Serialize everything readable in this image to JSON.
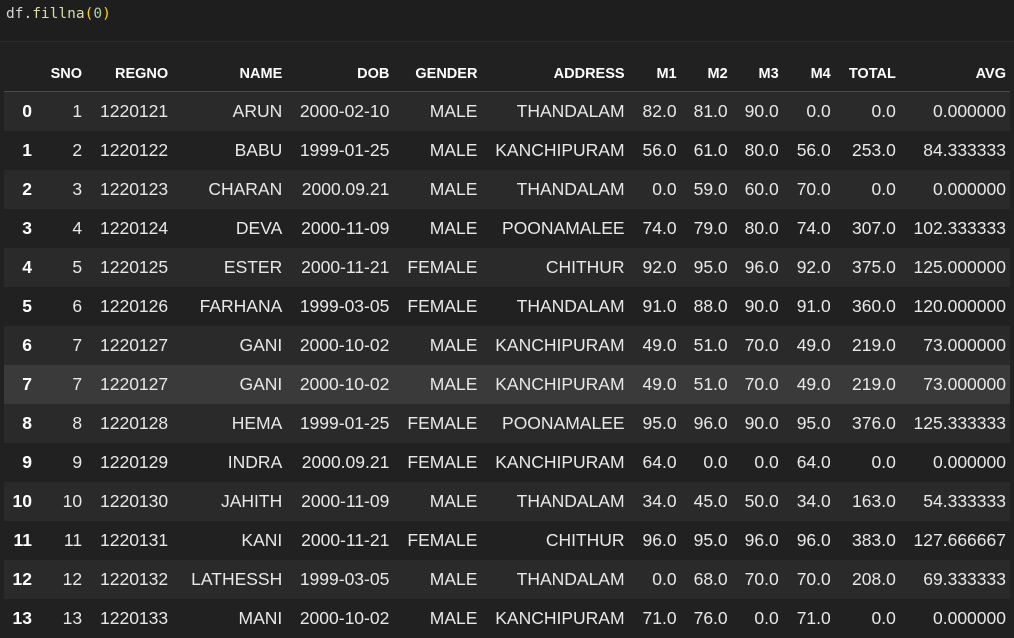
{
  "input": {
    "code_obj": "df.",
    "code_fn": "fillna",
    "code_open": "(",
    "code_arg": "0",
    "code_close": ")"
  },
  "table": {
    "columns": [
      "",
      "SNO",
      "REGNO",
      "NAME",
      "DOB",
      "GENDER",
      "ADDRESS",
      "M1",
      "M2",
      "M3",
      "M4",
      "TOTAL",
      "AVG"
    ],
    "rows": [
      [
        "0",
        "1",
        "1220121",
        "ARUN",
        "2000-02-10",
        "MALE",
        "THANDALAM",
        "82.0",
        "81.0",
        "90.0",
        "0.0",
        "0.0",
        "0.000000"
      ],
      [
        "1",
        "2",
        "1220122",
        "BABU",
        "1999-01-25",
        "MALE",
        "KANCHIPURAM",
        "56.0",
        "61.0",
        "80.0",
        "56.0",
        "253.0",
        "84.333333"
      ],
      [
        "2",
        "3",
        "1220123",
        "CHARAN",
        "2000.09.21",
        "MALE",
        "THANDALAM",
        "0.0",
        "59.0",
        "60.0",
        "70.0",
        "0.0",
        "0.000000"
      ],
      [
        "3",
        "4",
        "1220124",
        "DEVA",
        "2000-11-09",
        "MALE",
        "POONAMALEE",
        "74.0",
        "79.0",
        "80.0",
        "74.0",
        "307.0",
        "102.333333"
      ],
      [
        "4",
        "5",
        "1220125",
        "ESTER",
        "2000-11-21",
        "FEMALE",
        "CHITHUR",
        "92.0",
        "95.0",
        "96.0",
        "92.0",
        "375.0",
        "125.000000"
      ],
      [
        "5",
        "6",
        "1220126",
        "FARHANA",
        "1999-03-05",
        "FEMALE",
        "THANDALAM",
        "91.0",
        "88.0",
        "90.0",
        "91.0",
        "360.0",
        "120.000000"
      ],
      [
        "6",
        "7",
        "1220127",
        "GANI",
        "2000-10-02",
        "MALE",
        "KANCHIPURAM",
        "49.0",
        "51.0",
        "70.0",
        "49.0",
        "219.0",
        "73.000000"
      ],
      [
        "7",
        "7",
        "1220127",
        "GANI",
        "2000-10-02",
        "MALE",
        "KANCHIPURAM",
        "49.0",
        "51.0",
        "70.0",
        "49.0",
        "219.0",
        "73.000000"
      ],
      [
        "8",
        "8",
        "1220128",
        "HEMA",
        "1999-01-25",
        "FEMALE",
        "POONAMALEE",
        "95.0",
        "96.0",
        "90.0",
        "95.0",
        "376.0",
        "125.333333"
      ],
      [
        "9",
        "9",
        "1220129",
        "INDRA",
        "2000.09.21",
        "FEMALE",
        "KANCHIPURAM",
        "64.0",
        "0.0",
        "0.0",
        "64.0",
        "0.0",
        "0.000000"
      ],
      [
        "10",
        "10",
        "1220130",
        "JAHITH",
        "2000-11-09",
        "MALE",
        "THANDALAM",
        "34.0",
        "45.0",
        "50.0",
        "34.0",
        "163.0",
        "54.333333"
      ],
      [
        "11",
        "11",
        "1220131",
        "KANI",
        "2000-11-21",
        "FEMALE",
        "CHITHUR",
        "96.0",
        "95.0",
        "96.0",
        "96.0",
        "383.0",
        "127.666667"
      ],
      [
        "12",
        "12",
        "1220132",
        "LATHESSH",
        "1999-03-05",
        "MALE",
        "THANDALAM",
        "0.0",
        "68.0",
        "70.0",
        "70.0",
        "208.0",
        "69.333333"
      ],
      [
        "13",
        "13",
        "1220133",
        "MANI",
        "2000-10-02",
        "MALE",
        "KANCHIPURAM",
        "71.0",
        "76.0",
        "0.0",
        "71.0",
        "0.0",
        "0.000000"
      ]
    ]
  }
}
